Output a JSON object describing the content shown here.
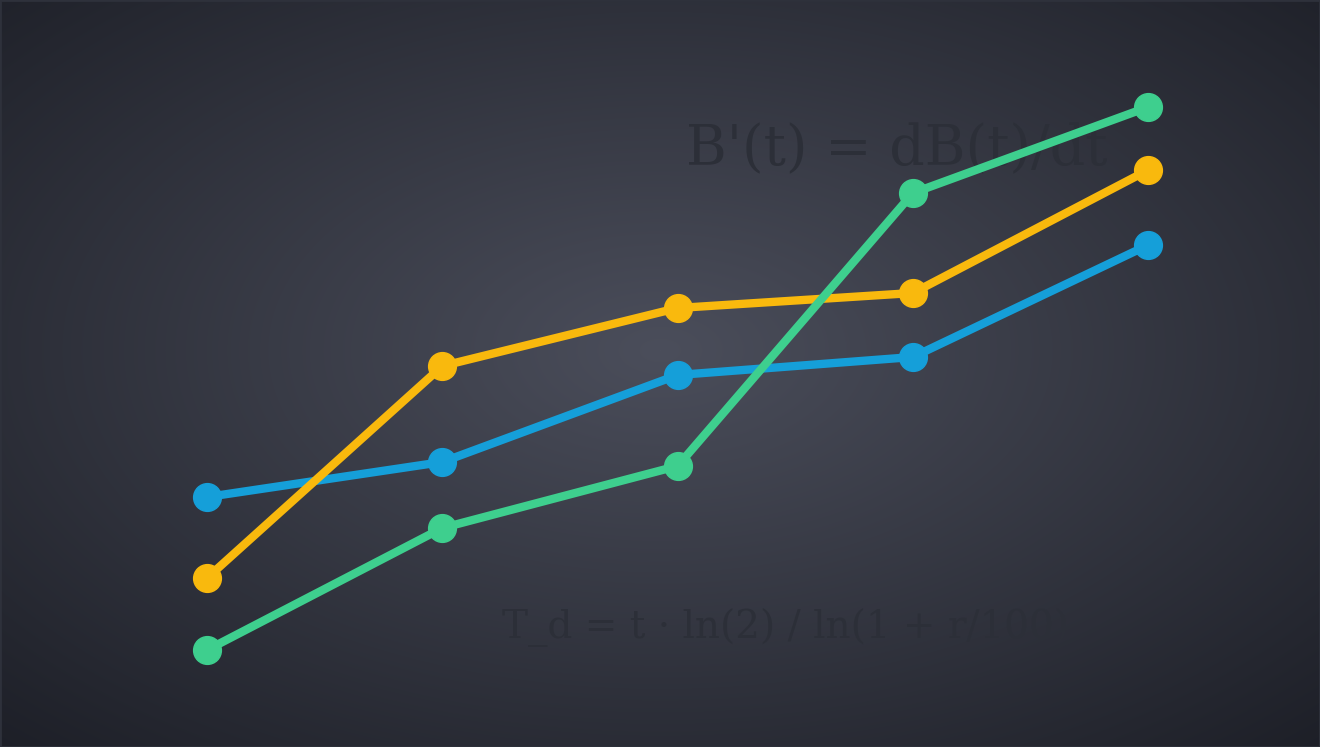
{
  "chart_data": {
    "type": "line",
    "x": [
      1,
      2,
      3,
      4,
      5
    ],
    "series": [
      {
        "color": "#159fd9",
        "marker": "o",
        "line_style": "solid",
        "values": [
          20.3,
          23.8,
          32.5,
          34.3,
          45.5
        ]
      },
      {
        "color": "#f9b90d",
        "marker": "o",
        "line_style": "solid",
        "values": [
          12.2,
          33.4,
          39.2,
          40.7,
          53.0
        ]
      },
      {
        "color": "#3ecf8e",
        "marker": "o",
        "line_style": "solid",
        "values": [
          5.0,
          17.2,
          23.4,
          50.7,
          59.3
        ]
      }
    ],
    "xlim": [
      0.12,
      5.73
    ],
    "ylim": [
      -4.7,
      70
    ],
    "xticks": [],
    "yticks": [],
    "tick_labels": false,
    "grid": false,
    "annotations": [
      "B'(t) = dB(t)/dt",
      "T_d = t · ln(2) / ln(1 + r/100)"
    ]
  }
}
